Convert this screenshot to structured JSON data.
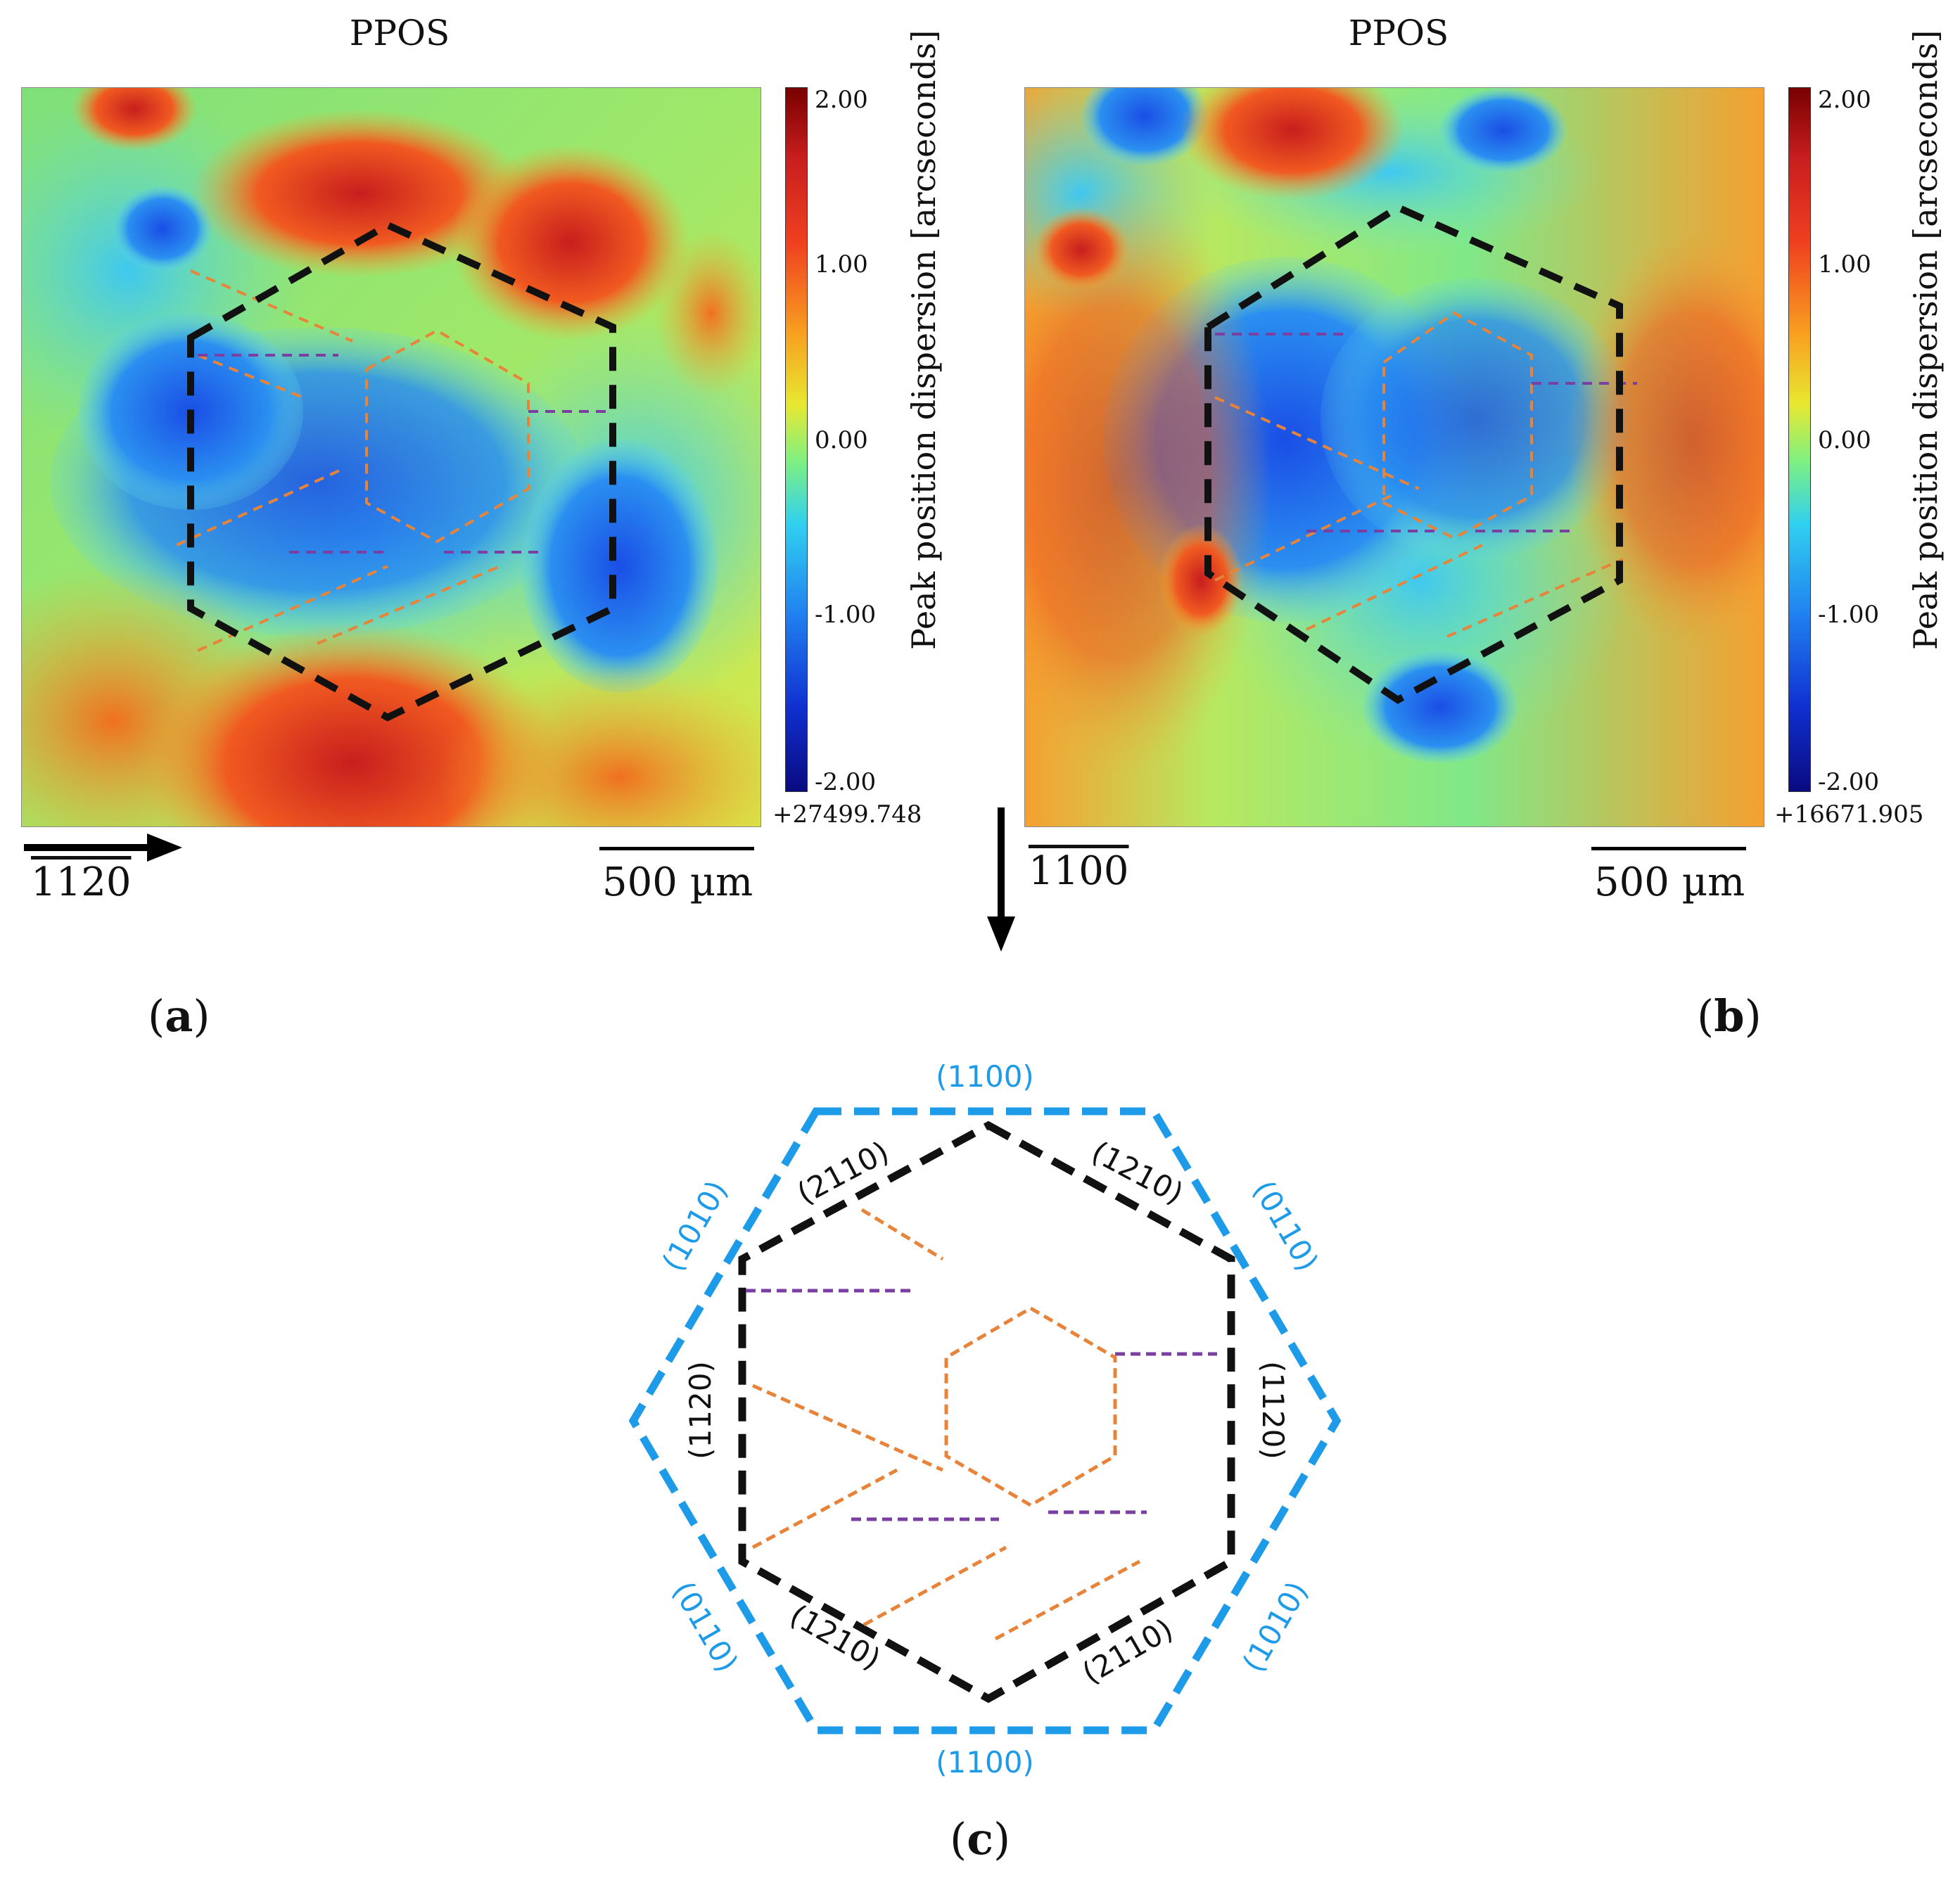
{
  "panel_a": {
    "title": "PPOS",
    "colorbar": {
      "title": "Peak position dispersion [arcseconds]",
      "ticks": [
        "2.00",
        "1.00",
        "0.00",
        "-1.00",
        "-2.00"
      ],
      "offset": "+27499.748"
    },
    "direction_label": "1120",
    "scale_bar": "500 µm",
    "label": "a"
  },
  "panel_b": {
    "title": "PPOS",
    "colorbar": {
      "title": "Peak position dispersion [arcseconds]",
      "ticks": [
        "2.00",
        "1.00",
        "0.00",
        "-1.00",
        "-2.00"
      ],
      "offset": "+16671.905"
    },
    "direction_label": "1100",
    "scale_bar": "500 µm",
    "label": "b"
  },
  "panel_c": {
    "label": "c",
    "outer_planes": {
      "top": "(1100)",
      "upper_right": "(0110)",
      "lower_right": "(1010)",
      "bottom": "(1100)",
      "lower_left": "(0110)",
      "upper_left": "(1010)"
    },
    "inner_planes": {
      "upper_left": "(2110)",
      "upper_right": "(1210)",
      "right": "(1120)",
      "lower_right": "(2110)",
      "lower_left": "(1210)",
      "left": "(1120)"
    }
  },
  "colors": {
    "outer_hexagon": "#1e9be8",
    "inner_hexagon": "#111111",
    "orange_lines": "#e8843a",
    "purple_lines": "#7a3fa0"
  }
}
